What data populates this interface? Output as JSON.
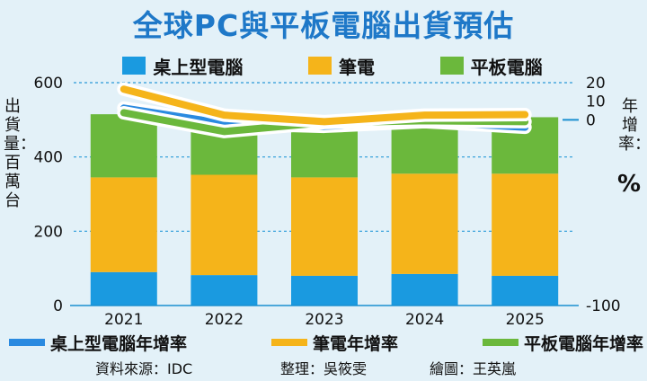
{
  "title": "全球PC與平板電腦出貨預估",
  "legend_bars": [
    {
      "label": "桌上型電腦",
      "color": "#1a9ae0"
    },
    {
      "label": "筆電",
      "color": "#f5b41a"
    },
    {
      "label": "平板電腦",
      "color": "#6bb83c"
    }
  ],
  "legend_lines": [
    {
      "label": "桌上型電腦年增率",
      "color": "#2a8ae0"
    },
    {
      "label": "筆電年增率",
      "color": "#f5b41a"
    },
    {
      "label": "平板電腦年增率",
      "color": "#6bb83c"
    }
  ],
  "footer": {
    "source": "資料來源：IDC",
    "editor": "整理：吳筱雯",
    "artist": "繪圖：王英嵐"
  },
  "chart_data": {
    "type": "bar",
    "title": "全球PC與平板電腦出貨預估",
    "categories": [
      "2021",
      "2022",
      "2023",
      "2024",
      "2025"
    ],
    "ylabel": "出貨量：百萬台",
    "ylim": [
      0,
      600
    ],
    "yticks": [
      "0",
      "200",
      "400",
      "600"
    ],
    "y2label": "年增率：",
    "y2unit": "%",
    "y2lim": [
      -100,
      20
    ],
    "y2ticks": [
      "-100",
      "0",
      "10",
      "20"
    ],
    "stacked": true,
    "series": [
      {
        "name": "桌上型電腦",
        "axis": "left",
        "values": [
          90,
          82,
          80,
          85,
          80
        ]
      },
      {
        "name": "筆電",
        "axis": "left",
        "values": [
          255,
          270,
          265,
          270,
          275
        ]
      },
      {
        "name": "平板電腦",
        "axis": "left",
        "values": [
          170,
          157,
          155,
          152,
          152
        ]
      }
    ],
    "lines": [
      {
        "name": "桌上型電腦年增率",
        "axis": "right",
        "values": [
          6.3,
          -2.0,
          -3.5,
          -1.0,
          -4.0
        ]
      },
      {
        "name": "筆電年增率",
        "axis": "right",
        "values": [
          16.5,
          2.5,
          -1.0,
          2.5,
          2.8
        ]
      },
      {
        "name": "平板電腦年增率",
        "axis": "right",
        "values": [
          3.8,
          -6.3,
          -1.5,
          -0.5,
          -1.0
        ]
      }
    ],
    "grid": "dashed at left-axis ticks"
  }
}
